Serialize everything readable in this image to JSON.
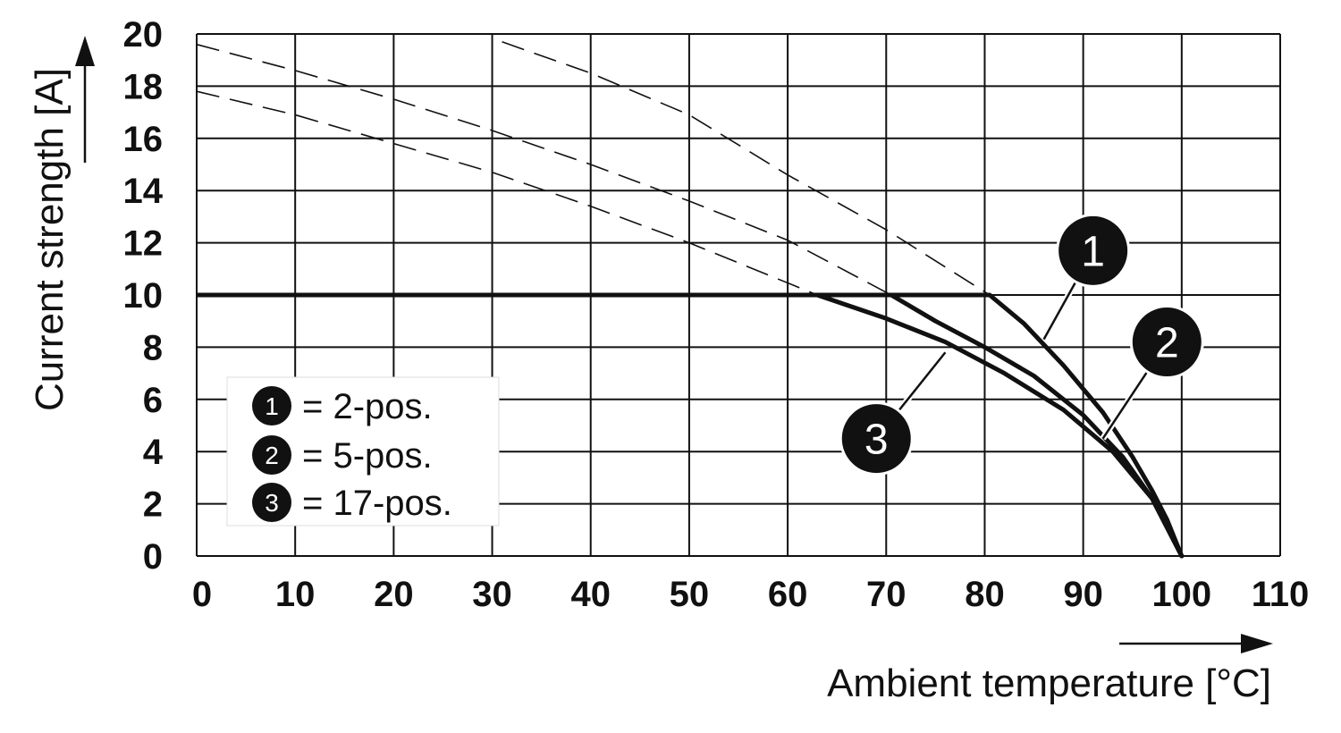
{
  "chart_data": {
    "type": "line",
    "xlabel": "Ambient temperature [°C]",
    "ylabel": "Current strength [A]",
    "xlim": [
      0,
      110
    ],
    "ylim": [
      0,
      20
    ],
    "x_ticks": [
      "0",
      "10",
      "20",
      "30",
      "40",
      "50",
      "60",
      "70",
      "80",
      "90",
      "100",
      "110"
    ],
    "y_ticks": [
      "0",
      "2",
      "4",
      "6",
      "8",
      "10",
      "12",
      "14",
      "16",
      "18",
      "20"
    ],
    "grid": true,
    "legend_position": "bottom-left",
    "current_limit": {
      "x": [
        0,
        80.5
      ],
      "y": [
        10,
        10
      ]
    },
    "series": [
      {
        "name": "1",
        "legend_label": "= 2-pos.",
        "derating": {
          "x": [
            80.5,
            84,
            88,
            92,
            95,
            97,
            98.5,
            100
          ],
          "y": [
            10,
            8.9,
            7.3,
            5.5,
            3.8,
            2.5,
            1.4,
            0
          ]
        },
        "dashed": {
          "x": [
            31,
            40,
            50,
            60,
            70,
            80.5
          ],
          "y": [
            19.7,
            18.5,
            16.9,
            14.6,
            12.5,
            10
          ]
        }
      },
      {
        "name": "2",
        "legend_label": "= 5-pos.",
        "derating": {
          "x": [
            70.5,
            75,
            80,
            85,
            90,
            94,
            97,
            100
          ],
          "y": [
            10,
            9.0,
            8.0,
            6.9,
            5.4,
            3.8,
            2.2,
            0
          ]
        },
        "dashed": {
          "x": [
            0,
            10,
            20,
            30,
            40,
            50,
            60,
            70.5
          ],
          "y": [
            19.6,
            18.6,
            17.5,
            16.3,
            15.0,
            13.6,
            12.1,
            10
          ]
        }
      },
      {
        "name": "3",
        "legend_label": "= 17-pos.",
        "derating": {
          "x": [
            63,
            70,
            76,
            82,
            88,
            93,
            97,
            100
          ],
          "y": [
            10,
            9.1,
            8.2,
            7.0,
            5.6,
            4.0,
            2.2,
            0
          ]
        },
        "dashed": {
          "x": [
            0,
            10,
            20,
            30,
            40,
            50,
            63
          ],
          "y": [
            17.8,
            16.9,
            15.8,
            14.7,
            13.4,
            12.0,
            10
          ]
        }
      }
    ],
    "callouts": [
      {
        "label": "1",
        "anchor": [
          86,
          8.3
        ],
        "bubble": [
          91,
          11.7
        ]
      },
      {
        "label": "2",
        "anchor": [
          92,
          4.5
        ],
        "bubble": [
          98.5,
          8.2
        ]
      },
      {
        "label": "3",
        "anchor": [
          76,
          7.8
        ],
        "bubble": [
          69,
          4.5
        ]
      }
    ]
  }
}
